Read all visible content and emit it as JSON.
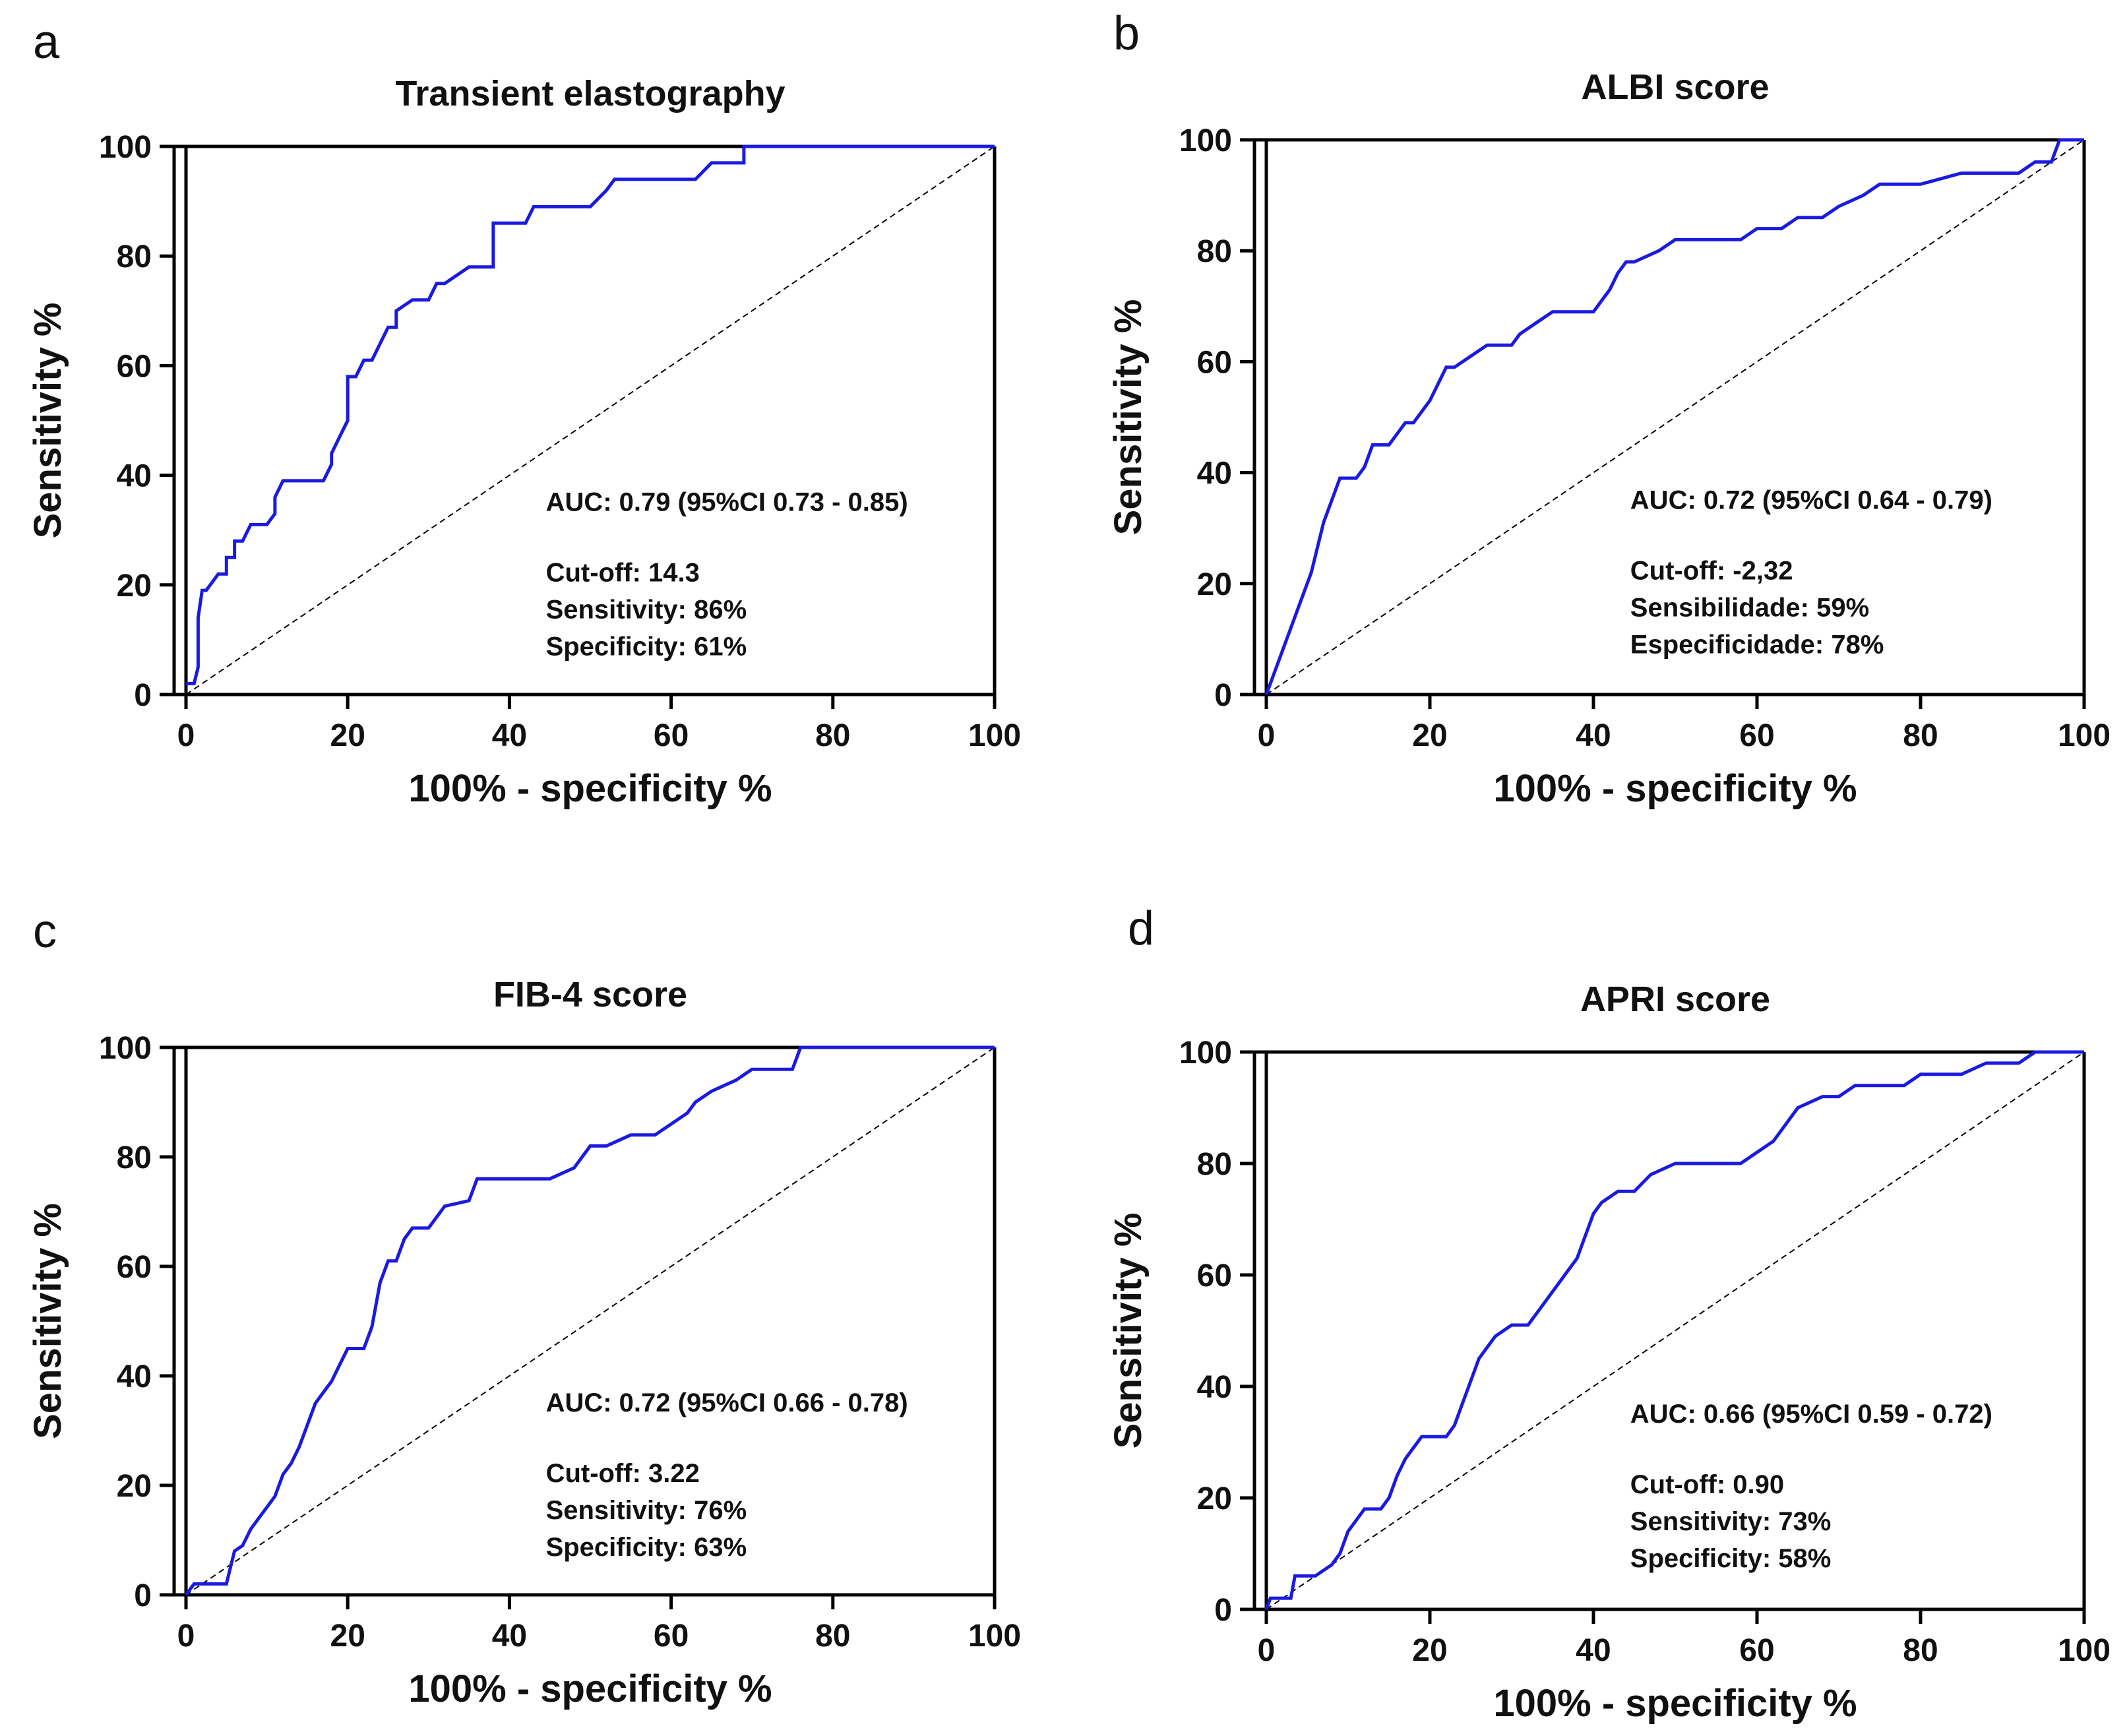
{
  "colors": {
    "roc": "#1a1ae0",
    "reference": "#000000",
    "axis": "#000000"
  },
  "chart_data": [
    {
      "panel": "a",
      "type": "line",
      "title": "Transient elastography",
      "xlabel": "100% - specificity %",
      "ylabel": "Sensitivity %",
      "xlim": [
        0,
        100
      ],
      "ylim": [
        0,
        100
      ],
      "xticks": [
        "0",
        "20",
        "40",
        "60",
        "80",
        "100"
      ],
      "yticks": [
        "0",
        "20",
        "40",
        "60",
        "80",
        "100"
      ],
      "annotations": [
        "AUC: 0.79 (95%CI 0.73 - 0.85)",
        "Cut-off: 14.3",
        "Sensitivity: 86%",
        "Specificity: 61%"
      ],
      "series": [
        {
          "name": "ROC curve",
          "x": [
            0,
            1,
            1.5,
            1.5,
            2,
            2.5,
            3,
            3,
            4,
            5,
            5,
            6,
            6,
            7,
            8,
            10,
            11,
            11,
            12,
            13,
            16,
            17,
            18,
            18,
            19,
            20,
            20,
            21,
            22,
            23,
            24,
            25,
            26,
            26,
            28,
            29,
            30,
            31,
            32,
            35,
            37,
            38,
            38,
            41,
            42,
            43,
            45,
            50,
            52,
            53,
            55,
            59,
            63,
            65,
            67,
            68,
            69,
            69,
            75,
            80,
            90,
            100
          ],
          "y": [
            2,
            2,
            5,
            14,
            19,
            19,
            20,
            20,
            22,
            22,
            25,
            25,
            28,
            28,
            31,
            31,
            33,
            36,
            39,
            39,
            39,
            39,
            42,
            44,
            47,
            50,
            58,
            58,
            61,
            61,
            64,
            67,
            67,
            70,
            72,
            72,
            72,
            75,
            75,
            78,
            78,
            78,
            86,
            86,
            86,
            89,
            89,
            89,
            92,
            94,
            94,
            94,
            94,
            97,
            97,
            97,
            97,
            100,
            100,
            100,
            100,
            100
          ]
        },
        {
          "name": "Reference line",
          "x": [
            0,
            100
          ],
          "y": [
            0,
            100
          ]
        }
      ]
    },
    {
      "panel": "b",
      "type": "line",
      "title": "ALBI score",
      "xlabel": "100% - specificity %",
      "ylabel": "Sensitivity %",
      "xlim": [
        0,
        100
      ],
      "ylim": [
        0,
        100
      ],
      "xticks": [
        "0",
        "20",
        "40",
        "60",
        "80",
        "100"
      ],
      "yticks": [
        "0",
        "20",
        "40",
        "60",
        "80",
        "100"
      ],
      "annotations": [
        "AUC: 0.72 (95%CI 0.64 - 0.79)",
        "Cut-off: -2,32",
        "Sensibilidade: 59%",
        "Especificidade: 78%"
      ],
      "series": [
        {
          "name": "ROC curve",
          "x": [
            0,
            0.5,
            1,
            1.5,
            2,
            2.5,
            3,
            3.5,
            4,
            4.5,
            5,
            5.5,
            6,
            6.5,
            7,
            7.5,
            8,
            8.5,
            9,
            10,
            11,
            12,
            12.5,
            13,
            14,
            15,
            16,
            17,
            18,
            20,
            22,
            23,
            25,
            27,
            30,
            31,
            33,
            35,
            40,
            41,
            42,
            43,
            44,
            45,
            48,
            50,
            53,
            55,
            58,
            60,
            63,
            65,
            68,
            70,
            73,
            75,
            80,
            85,
            88,
            90,
            92,
            94,
            95,
            96,
            96.5,
            97,
            100
          ],
          "y": [
            0,
            2,
            4,
            6,
            8,
            10,
            12,
            14,
            16,
            18,
            20,
            22,
            25,
            28,
            31,
            33,
            35,
            37,
            39,
            39,
            39,
            41,
            43,
            45,
            45,
            45,
            47,
            49,
            49,
            53,
            59,
            59,
            61,
            63,
            63,
            65,
            67,
            69,
            69,
            71,
            73,
            76,
            78,
            78,
            80,
            82,
            82,
            82,
            82,
            84,
            84,
            86,
            86,
            88,
            90,
            92,
            92,
            94,
            94,
            94,
            94,
            96,
            96,
            96,
            98,
            100,
            100
          ]
        },
        {
          "name": "Reference line",
          "x": [
            0,
            100
          ],
          "y": [
            0,
            100
          ]
        }
      ]
    },
    {
      "panel": "c",
      "type": "line",
      "title": "FIB-4 score",
      "xlabel": "100% - specificity %",
      "ylabel": "Sensitivity %",
      "xlim": [
        0,
        100
      ],
      "ylim": [
        0,
        100
      ],
      "xticks": [
        "0",
        "20",
        "40",
        "60",
        "80",
        "100"
      ],
      "yticks": [
        "0",
        "20",
        "40",
        "60",
        "80",
        "100"
      ],
      "annotations": [
        "AUC: 0.72 (95%CI 0.66 - 0.78)",
        "Cut-off: 3.22",
        "Sensitivity: 76%",
        "Specificity: 63%"
      ],
      "series": [
        {
          "name": "ROC curve",
          "x": [
            0,
            1,
            5,
            5.5,
            6,
            7,
            8,
            9,
            10,
            11,
            12,
            13,
            14,
            15,
            16,
            17,
            18,
            19,
            20,
            22,
            23,
            23.5,
            24,
            25,
            26,
            27,
            28,
            30,
            32,
            35,
            36,
            38,
            40,
            45,
            48,
            49,
            50,
            52,
            55,
            58,
            60,
            62,
            63,
            65,
            68,
            70,
            72,
            75,
            76,
            78,
            80,
            90,
            100
          ],
          "y": [
            0,
            2,
            2,
            5,
            8,
            9,
            12,
            14,
            16,
            18,
            22,
            24,
            27,
            31,
            35,
            37,
            39,
            42,
            45,
            45,
            49,
            53,
            57,
            61,
            61,
            65,
            67,
            67,
            71,
            72,
            76,
            76,
            76,
            76,
            78,
            80,
            82,
            82,
            84,
            84,
            86,
            88,
            90,
            92,
            94,
            96,
            96,
            96,
            100,
            100,
            100,
            100,
            100
          ]
        },
        {
          "name": "Reference line",
          "x": [
            0,
            100
          ],
          "y": [
            0,
            100
          ]
        }
      ]
    },
    {
      "panel": "d",
      "type": "line",
      "title": "APRI score",
      "xlabel": "100% - specificity %",
      "ylabel": "Sensitivity %",
      "xlim": [
        0,
        100
      ],
      "ylim": [
        0,
        100
      ],
      "xticks": [
        "0",
        "20",
        "40",
        "60",
        "80",
        "100"
      ],
      "yticks": [
        "0",
        "20",
        "40",
        "60",
        "80",
        "100"
      ],
      "annotations": [
        "AUC: 0.66 (95%CI 0.59 - 0.72)",
        "Cut-off: 0.90",
        "Sensitivity: 73%",
        "Specificity: 58%"
      ],
      "series": [
        {
          "name": "ROC curve",
          "x": [
            0,
            0.5,
            3,
            3.5,
            6,
            8,
            9,
            10,
            11,
            12,
            14,
            15,
            16,
            17,
            18,
            19,
            22,
            23,
            24,
            25,
            26,
            27,
            28,
            30,
            32,
            34,
            35,
            36,
            37,
            38,
            39,
            40,
            41,
            43,
            45,
            47,
            50,
            53,
            55,
            58,
            60,
            62,
            63,
            65,
            68,
            70,
            72,
            75,
            78,
            80,
            85,
            88,
            90,
            92,
            94,
            100
          ],
          "y": [
            0,
            2,
            2,
            6,
            6,
            8,
            10,
            14,
            16,
            18,
            18,
            20,
            24,
            27,
            29,
            31,
            31,
            33,
            37,
            41,
            45,
            47,
            49,
            51,
            51,
            55,
            57,
            59,
            61,
            63,
            67,
            71,
            73,
            75,
            75,
            78,
            80,
            80,
            80,
            80,
            82,
            84,
            86,
            90,
            92,
            92,
            94,
            94,
            94,
            96,
            96,
            98,
            98,
            98,
            100,
            100
          ]
        },
        {
          "name": "Reference line",
          "x": [
            0,
            100
          ],
          "y": [
            0,
            100
          ]
        }
      ]
    }
  ]
}
